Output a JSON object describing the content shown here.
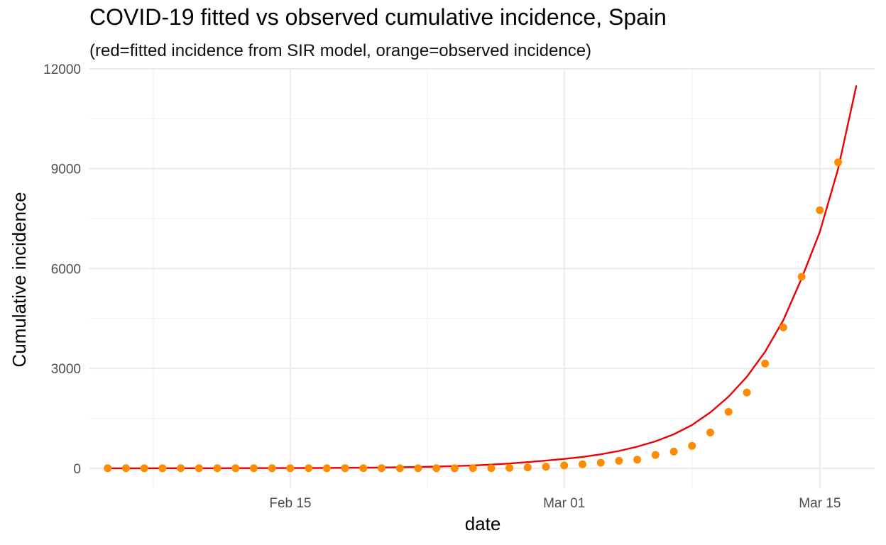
{
  "chart_data": {
    "type": "line+scatter",
    "title": "COVID-19 fitted vs observed cumulative incidence, Spain",
    "subtitle": "(red=fitted incidence from SIR model, orange=observed incidence)",
    "xlabel": "date",
    "ylabel": "Cumulative incidence",
    "x_ticks": [
      {
        "label": "Feb 15",
        "date": "2020-02-15"
      },
      {
        "label": "Mar 01",
        "date": "2020-03-01"
      },
      {
        "label": "Mar 15",
        "date": "2020-03-15"
      }
    ],
    "xlim": [
      "2020-02-04",
      "2020-03-18"
    ],
    "ylim": [
      -600,
      12000
    ],
    "y_ticks": [
      0,
      3000,
      6000,
      9000,
      12000
    ],
    "grid": true,
    "colors": {
      "fitted": "#ee0000",
      "observed": "#ff8c00",
      "grid": "#ebebeb"
    },
    "series": [
      {
        "kind": "line",
        "color": "#ee0000",
        "x": [
          "2020-02-05",
          "2020-02-06",
          "2020-02-07",
          "2020-02-08",
          "2020-02-09",
          "2020-02-10",
          "2020-02-11",
          "2020-02-12",
          "2020-02-13",
          "2020-02-14",
          "2020-02-15",
          "2020-02-16",
          "2020-02-17",
          "2020-02-18",
          "2020-02-19",
          "2020-02-20",
          "2020-02-21",
          "2020-02-22",
          "2020-02-23",
          "2020-02-24",
          "2020-02-25",
          "2020-02-26",
          "2020-02-27",
          "2020-02-28",
          "2020-02-29",
          "2020-03-01",
          "2020-03-02",
          "2020-03-03",
          "2020-03-04",
          "2020-03-05",
          "2020-03-06",
          "2020-03-07",
          "2020-03-08",
          "2020-03-09",
          "2020-03-10",
          "2020-03-11",
          "2020-03-12",
          "2020-03-13",
          "2020-03-14",
          "2020-03-15",
          "2020-03-16",
          "2020-03-17"
        ],
        "y": [
          0,
          0,
          0,
          1,
          1,
          2,
          2,
          3,
          4,
          5,
          6,
          8,
          10,
          13,
          17,
          22,
          29,
          38,
          50,
          65,
          85,
          110,
          142,
          185,
          230,
          280,
          340,
          420,
          520,
          650,
          810,
          1020,
          1300,
          1680,
          2150,
          2750,
          3500,
          4450,
          5700,
          7100,
          9000,
          11500
        ]
      },
      {
        "kind": "points",
        "color": "#ff8c00",
        "x": [
          "2020-02-05",
          "2020-02-06",
          "2020-02-07",
          "2020-02-08",
          "2020-02-09",
          "2020-02-10",
          "2020-02-11",
          "2020-02-12",
          "2020-02-13",
          "2020-02-14",
          "2020-02-15",
          "2020-02-16",
          "2020-02-17",
          "2020-02-18",
          "2020-02-19",
          "2020-02-20",
          "2020-02-21",
          "2020-02-22",
          "2020-02-23",
          "2020-02-24",
          "2020-02-25",
          "2020-02-26",
          "2020-02-27",
          "2020-02-28",
          "2020-02-29",
          "2020-03-01",
          "2020-03-02",
          "2020-03-03",
          "2020-03-04",
          "2020-03-05",
          "2020-03-06",
          "2020-03-07",
          "2020-03-08",
          "2020-03-09",
          "2020-03-10",
          "2020-03-11",
          "2020-03-12",
          "2020-03-13",
          "2020-03-14",
          "2020-03-15",
          "2020-03-16"
        ],
        "y": [
          1,
          1,
          1,
          1,
          1,
          2,
          2,
          2,
          2,
          2,
          2,
          2,
          2,
          2,
          2,
          2,
          2,
          2,
          2,
          2,
          3,
          4,
          12,
          25,
          45,
          84,
          120,
          165,
          222,
          259,
          400,
          500,
          673,
          1073,
          1695,
          2277,
          3146,
          4231,
          5753,
          7753,
          9191
        ]
      }
    ]
  }
}
